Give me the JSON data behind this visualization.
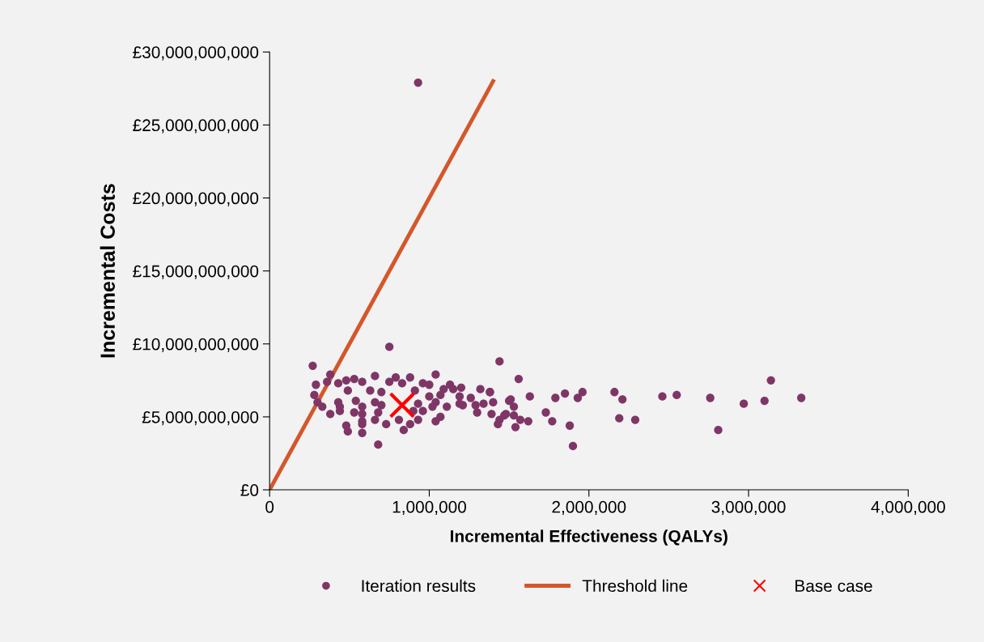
{
  "chart_data": {
    "type": "scatter",
    "xlabel": "Incremental Effectiveness (QALYs)",
    "ylabel": "Incremental Costs",
    "xlim": [
      0,
      4000000
    ],
    "ylim": [
      0,
      30000000000
    ],
    "xticks": [
      0,
      {
        "value": 1000000,
        "label": "1,000,000"
      },
      {
        "value": 2000000,
        "label": "2,000,000"
      },
      {
        "value": 3000000,
        "label": "3,000,000"
      },
      {
        "value": 4000000,
        "label": "4,000,000"
      }
    ],
    "yticks": [
      {
        "value": 0,
        "label": "£0"
      },
      {
        "value": 5000000000,
        "label": "£5,000,000,000"
      },
      {
        "value": 10000000000,
        "label": "£10,000,000,000"
      },
      {
        "value": 15000000000,
        "label": "£15,000,000,000"
      },
      {
        "value": 20000000000,
        "label": "£20,000,000,000"
      },
      {
        "value": 25000000000,
        "label": "£25,000,000,000"
      },
      {
        "value": 30000000000,
        "label": "£30,000,000,000"
      }
    ],
    "grid": false,
    "legend": "bottom",
    "series": [
      {
        "name": "Iteration results",
        "marker": "circle",
        "color": "#7f3667",
        "x": [
          930000,
          270000,
          750000,
          1440000,
          380000,
          660000,
          790000,
          880000,
          1040000,
          530000,
          480000,
          290000,
          360000,
          430000,
          580000,
          750000,
          830000,
          960000,
          1000000,
          1090000,
          1130000,
          1150000,
          1200000,
          1320000,
          1380000,
          280000,
          490000,
          630000,
          700000,
          910000,
          1000000,
          1070000,
          1190000,
          1260000,
          1400000,
          1500000,
          300000,
          430000,
          540000,
          660000,
          930000,
          1040000,
          1190000,
          1290000,
          1340000,
          330000,
          440000,
          580000,
          700000,
          960000,
          1020000,
          1110000,
          1210000,
          1300000,
          380000,
          440000,
          530000,
          580000,
          680000,
          900000,
          1390000,
          1470000,
          580000,
          660000,
          810000,
          930000,
          1040000,
          1070000,
          1440000,
          1430000,
          480000,
          580000,
          730000,
          880000,
          490000,
          580000,
          840000,
          680000,
          1560000,
          1380000,
          1510000,
          1530000,
          1630000,
          1790000,
          1850000,
          1960000,
          1930000,
          1480000,
          1530000,
          1570000,
          1620000,
          1540000,
          1730000,
          1770000,
          1880000,
          1900000,
          2160000,
          2210000,
          2190000,
          2290000,
          2460000,
          2550000,
          2760000,
          2810000,
          2970000,
          3100000,
          3140000,
          3330000
        ],
        "values": [
          27900000000.0,
          8500000000.0,
          9800000000.0,
          8800000000.0,
          7900000000.0,
          7800000000.0,
          7700000000.0,
          7700000000.0,
          7900000000.0,
          7600000000.0,
          7500000000.0,
          7200000000.0,
          7400000000.0,
          7300000000.0,
          7400000000.0,
          7400000000.0,
          7300000000.0,
          7300000000.0,
          7200000000.0,
          6900000000.0,
          7200000000.0,
          6900000000.0,
          7000000000.0,
          6900000000.0,
          6700000000.0,
          6500000000.0,
          6800000000.0,
          6800000000.0,
          6700000000.0,
          6800000000.0,
          6400000000.0,
          6500000000.0,
          6400000000.0,
          6300000000.0,
          6000000000.0,
          6100000000.0,
          6000000000.0,
          6000000000.0,
          6100000000.0,
          6000000000.0,
          5900000000.0,
          6000000000.0,
          5900000000.0,
          5800000000.0,
          5900000000.0,
          5700000000.0,
          5700000000.0,
          5700000000.0,
          5800000000.0,
          5400000000.0,
          5700000000.0,
          5700000000.0,
          5800000000.0,
          5300000000.0,
          5200000000.0,
          5400000000.0,
          5300000000.0,
          5200000000.0,
          5300000000.0,
          5400000000.0,
          5200000000.0,
          5100000000.0,
          4700000000.0,
          4800000000.0,
          4800000000.0,
          4800000000.0,
          4700000000.0,
          5000000000.0,
          4800000000.0,
          4500000000.0,
          4400000000.0,
          4500000000.0,
          4500000000.0,
          4500000000.0,
          4000000000.0,
          3900000000.0,
          4100000000.0,
          3100000000.0,
          7600000000.0,
          6700000000.0,
          6200000000.0,
          5700000000.0,
          6400000000.0,
          6300000000.0,
          6600000000.0,
          6700000000.0,
          6300000000.0,
          5200000000.0,
          5100000000.0,
          4800000000.0,
          4700000000.0,
          4300000000.0,
          5300000000.0,
          4700000000.0,
          4400000000.0,
          3000000000.0,
          6700000000.0,
          6200000000.0,
          4900000000.0,
          4800000000.0,
          6400000000.0,
          6500000000.0,
          6300000000.0,
          4100000000.0,
          5900000000.0,
          6100000000.0,
          7500000000.0,
          6300000000.0
        ]
      },
      {
        "name": "Threshold line",
        "type": "line",
        "marker": "none",
        "line_style": "solid",
        "color": "#d4572a",
        "x": [
          0,
          1400000
        ],
        "values": [
          0,
          28000000000
        ]
      },
      {
        "name": "Base case",
        "marker": "cross",
        "color": "#ff0000",
        "x": [
          830000
        ],
        "values": [
          5800000000
        ]
      }
    ]
  }
}
